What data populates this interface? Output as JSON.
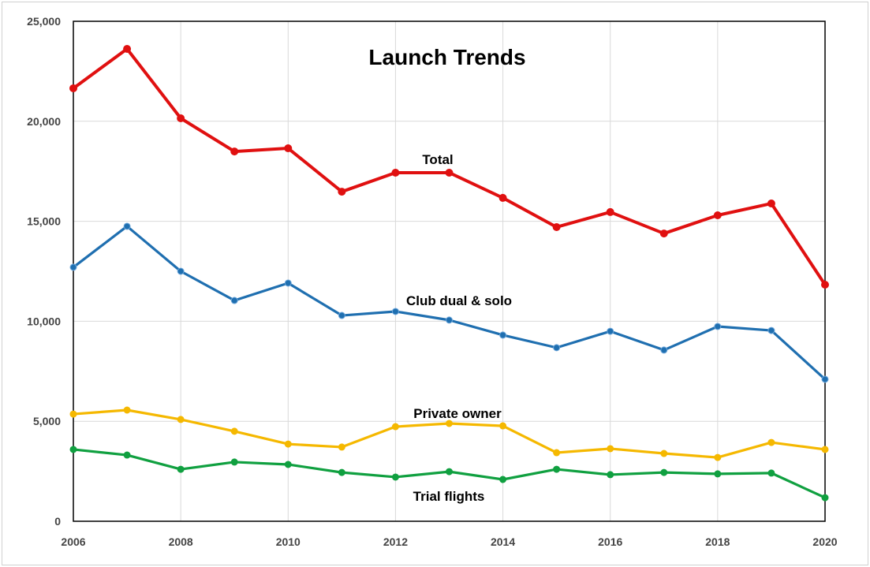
{
  "chart_data": {
    "type": "line",
    "title": "Launch Trends",
    "xlabel": "",
    "ylabel": "",
    "x": [
      2006,
      2007,
      2008,
      2009,
      2010,
      2011,
      2012,
      2013,
      2014,
      2015,
      2016,
      2017,
      2018,
      2019,
      2020
    ],
    "xlim": [
      2006,
      2020
    ],
    "ylim": [
      0,
      25000
    ],
    "x_ticks": [
      "2006",
      "2008",
      "2010",
      "2012",
      "2014",
      "2016",
      "2018",
      "2020"
    ],
    "y_ticks": [
      "0",
      "5,000",
      "10,000",
      "15,000",
      "20,000",
      "25,000"
    ],
    "grid": true,
    "legend": "inline labels",
    "series": [
      {
        "name": "Total",
        "color": "#e01010",
        "values": [
          21650,
          23620,
          20150,
          18490,
          18650,
          16480,
          17430,
          17430,
          16170,
          14710,
          15460,
          14390,
          15300,
          15890,
          11830
        ]
      },
      {
        "name": "Club dual & solo",
        "color": "#1f6fb0",
        "values": [
          12700,
          14750,
          12500,
          11040,
          11910,
          10290,
          10490,
          10060,
          9310,
          8680,
          9500,
          8560,
          9740,
          9540,
          7100
        ]
      },
      {
        "name": "Private owner",
        "color": "#f5b800",
        "values": [
          5360,
          5560,
          5090,
          4500,
          3860,
          3710,
          4730,
          4890,
          4770,
          3430,
          3630,
          3390,
          3190,
          3940,
          3590
        ]
      },
      {
        "name": "Trial flights",
        "color": "#10a040",
        "values": [
          3590,
          3310,
          2600,
          2960,
          2840,
          2440,
          2210,
          2480,
          2090,
          2600,
          2330,
          2440,
          2370,
          2410,
          1180
        ]
      }
    ]
  }
}
